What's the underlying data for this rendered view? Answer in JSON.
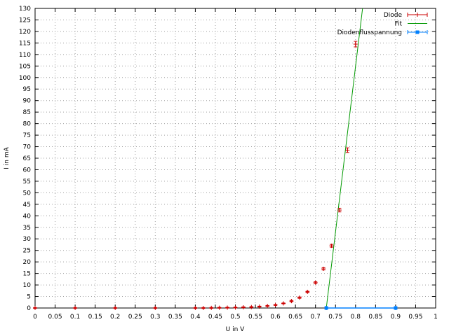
{
  "chart_data": {
    "type": "scatter",
    "xlabel": "U in V",
    "ylabel": "I in mA",
    "xlim": [
      0,
      1
    ],
    "ylim": [
      0,
      130
    ],
    "x_ticks": [
      0,
      0.05,
      0.1,
      0.15,
      0.2,
      0.25,
      0.3,
      0.35,
      0.4,
      0.45,
      0.5,
      0.55,
      0.6,
      0.65,
      0.7,
      0.75,
      0.8,
      0.85,
      0.9,
      0.95,
      1
    ],
    "x_tick_labels": [
      "0",
      "0.05",
      "0.1",
      "0.15",
      "0.2",
      "0.25",
      "0.3",
      "0.35",
      "0.4",
      "0.45",
      "0.5",
      "0.55",
      "0.6",
      "0.65",
      "0.7",
      "0.75",
      "0.8",
      "0.85",
      "0.9",
      "0.95",
      "1"
    ],
    "y_ticks": [
      0,
      5,
      10,
      15,
      20,
      25,
      30,
      35,
      40,
      45,
      50,
      55,
      60,
      65,
      70,
      75,
      80,
      85,
      90,
      95,
      100,
      105,
      110,
      115,
      120,
      125,
      130
    ],
    "y_tick_labels": [
      "0",
      "5",
      "10",
      "15",
      "20",
      "25",
      "30",
      "35",
      "40",
      "45",
      "50",
      "55",
      "60",
      "65",
      "70",
      "75",
      "80",
      "85",
      "90",
      "95",
      "100",
      "105",
      "110",
      "115",
      "120",
      "125",
      "130"
    ],
    "grid": true,
    "legend_position": "top-right",
    "series": [
      {
        "name": "Diode",
        "style": "points-with-errorbars",
        "color": "#cc0000",
        "points": [
          {
            "x": 0.0,
            "y": 0.0,
            "err": 0.2
          },
          {
            "x": 0.1,
            "y": 0.0,
            "err": 0.2
          },
          {
            "x": 0.2,
            "y": 0.0,
            "err": 0.2
          },
          {
            "x": 0.3,
            "y": 0.0,
            "err": 0.2
          },
          {
            "x": 0.4,
            "y": 0.0,
            "err": 0.2
          },
          {
            "x": 0.42,
            "y": 0.0,
            "err": 0.2
          },
          {
            "x": 0.44,
            "y": 0.05,
            "err": 0.2
          },
          {
            "x": 0.46,
            "y": 0.1,
            "err": 0.2
          },
          {
            "x": 0.48,
            "y": 0.15,
            "err": 0.2
          },
          {
            "x": 0.5,
            "y": 0.2,
            "err": 0.2
          },
          {
            "x": 0.52,
            "y": 0.3,
            "err": 0.2
          },
          {
            "x": 0.54,
            "y": 0.4,
            "err": 0.2
          },
          {
            "x": 0.56,
            "y": 0.6,
            "err": 0.2
          },
          {
            "x": 0.58,
            "y": 0.9,
            "err": 0.2
          },
          {
            "x": 0.6,
            "y": 1.3,
            "err": 0.2
          },
          {
            "x": 0.62,
            "y": 2.0,
            "err": 0.2
          },
          {
            "x": 0.64,
            "y": 3.0,
            "err": 0.3
          },
          {
            "x": 0.66,
            "y": 4.5,
            "err": 0.3
          },
          {
            "x": 0.68,
            "y": 7.0,
            "err": 0.3
          },
          {
            "x": 0.7,
            "y": 11.0,
            "err": 0.4
          },
          {
            "x": 0.72,
            "y": 17.0,
            "err": 0.5
          },
          {
            "x": 0.74,
            "y": 27.0,
            "err": 0.6
          },
          {
            "x": 0.76,
            "y": 42.5,
            "err": 0.8
          },
          {
            "x": 0.78,
            "y": 68.5,
            "err": 1.0
          },
          {
            "x": 0.8,
            "y": 114.5,
            "err": 1.2
          }
        ]
      },
      {
        "name": "Fit",
        "style": "line",
        "color": "#009900",
        "points": [
          {
            "x": 0.727,
            "y": 0
          },
          {
            "x": 0.8175,
            "y": 130
          }
        ]
      },
      {
        "name": "Diodenflusspannung",
        "style": "line-with-errorbars",
        "color": "#0080ff",
        "points": [
          {
            "x": 0.727,
            "y": 0
          },
          {
            "x": 0.9,
            "y": 0
          }
        ]
      }
    ]
  }
}
